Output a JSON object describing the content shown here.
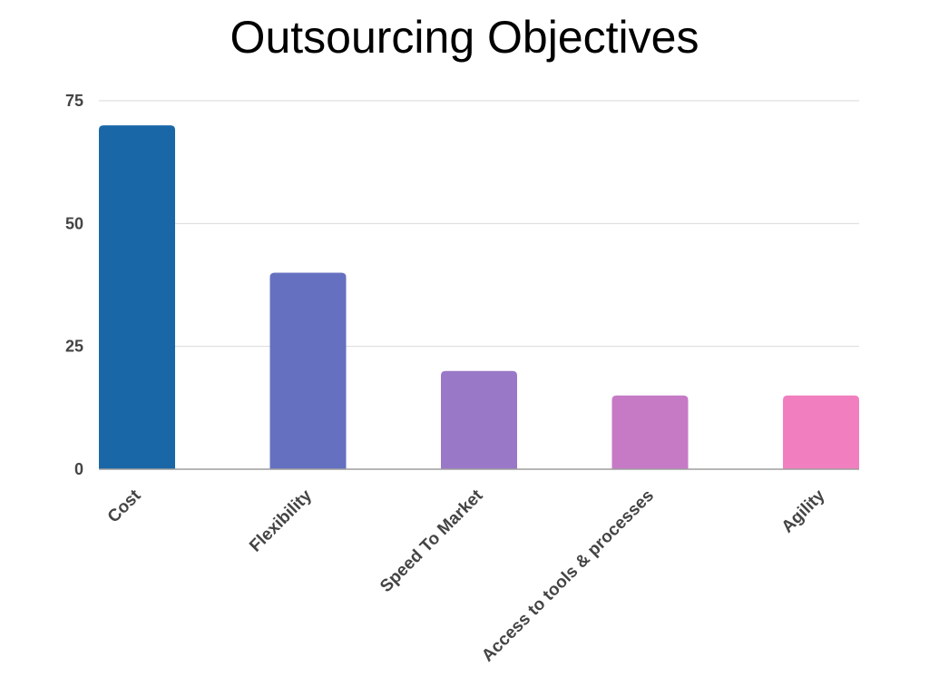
{
  "chart_data": {
    "type": "bar",
    "title": "Outsourcing Objectives",
    "xlabel": "",
    "ylabel": "",
    "categories": [
      "Cost",
      "Flexibility",
      "Speed To Market",
      "Access to tools & processes",
      "Agility"
    ],
    "values": [
      70,
      40,
      20,
      15,
      15
    ],
    "colors": [
      "#1a67a8",
      "#6570c0",
      "#9a78c8",
      "#c67ac6",
      "#f17fbf"
    ],
    "ylim": [
      0,
      75
    ],
    "yticks": [
      0,
      25,
      50,
      75
    ],
    "grid": true,
    "legend": "none"
  }
}
